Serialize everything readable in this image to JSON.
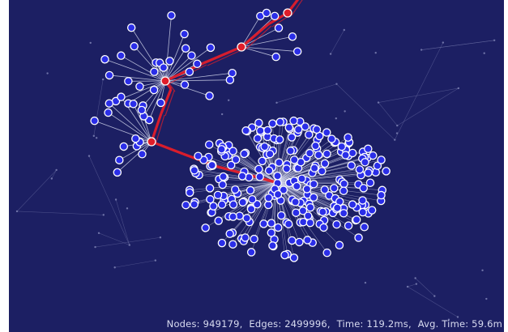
{
  "colors": {
    "background": "#1c1f63",
    "node_fill": "#2b2ee8",
    "node_stroke": "#ffffff",
    "path_color": "#e01e2a",
    "edge_color": "#cfd3ea",
    "faint_edge_color": "#6f73a8"
  },
  "stats": {
    "nodes": "Nodes: 949179,",
    "edges": "Edges: 2499996,",
    "time": "Time: 119.2ms,",
    "avg_time": "Avg. Time: 59.6m"
  }
}
